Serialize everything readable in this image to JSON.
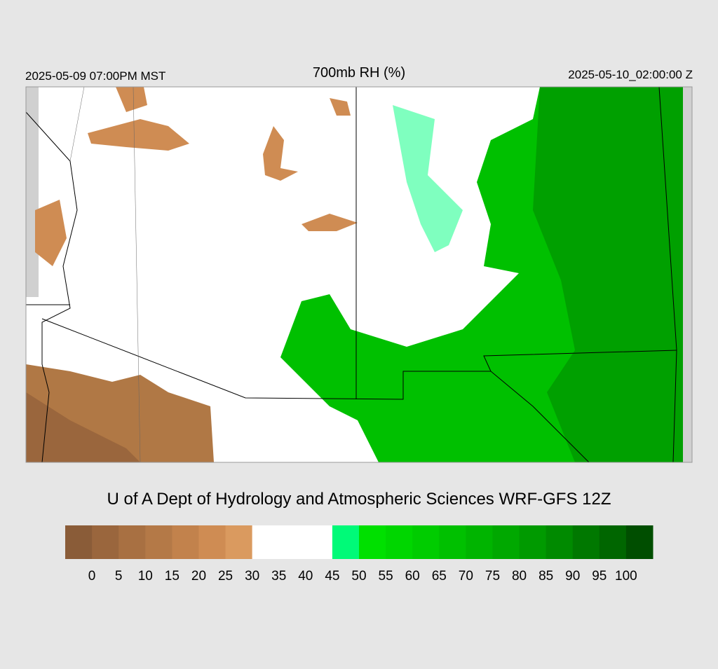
{
  "header": {
    "left": "2025-05-09 07:00PM MST",
    "title": "700mb RH (%)",
    "right": "2025-05-10_02:00:00 Z"
  },
  "credit": "U of A Dept of Hydrology and Atmospheric Sciences WRF-GFS 12Z",
  "colorbar": {
    "levels": [
      0,
      5,
      10,
      15,
      20,
      25,
      30,
      35,
      40,
      45,
      50,
      55,
      60,
      65,
      70,
      75,
      80,
      85,
      90,
      95,
      100
    ],
    "colors": [
      "#8a5c38",
      "#9a663d",
      "#a87042",
      "#b47947",
      "#c2824c",
      "#cf8c53",
      "#da9a5f",
      "#ffffff",
      "#ffffff",
      "#ffffff",
      "#00fa78",
      "#00e000",
      "#00d600",
      "#00cc00",
      "#00c000",
      "#00b400",
      "#00a800",
      "#009a00",
      "#008a00",
      "#007800",
      "#006600",
      "#004e00"
    ]
  }
}
